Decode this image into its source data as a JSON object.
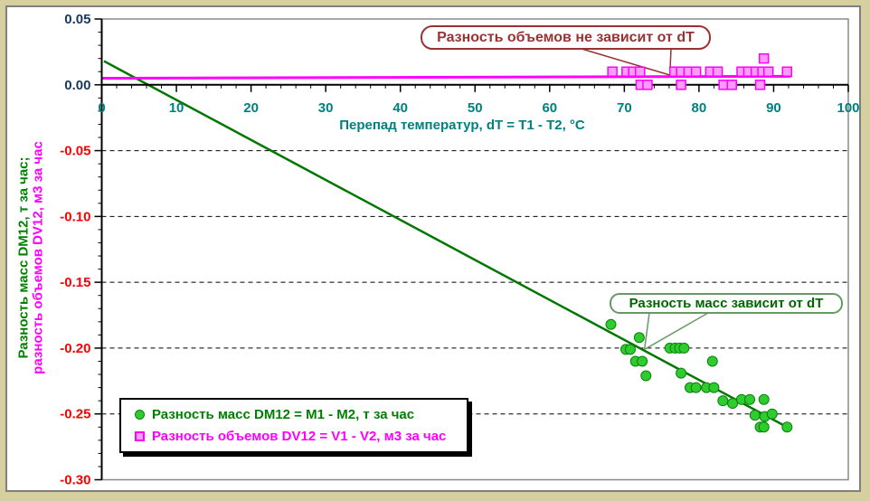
{
  "colors": {
    "frame_background": "#d6d0a0",
    "chart_background": "#ffffff",
    "chart_border": "#7f7f7f",
    "axis": "#000000",
    "x_tick_label": "#008080",
    "y_tick_label_positive": "#17375d",
    "y_tick_label_negative": "#ff0000",
    "mass_marker_fill": "#2ecc2e",
    "mass_marker_edge": "#0a800a",
    "mass_trendline": "#007700",
    "volume_marker_fill": "#ff9aff",
    "volume_marker_edge": "#ff00ff",
    "volume_trendline": "#ff00ff",
    "annotation_volumes": "#993333",
    "annotation_masses_text": "#006600",
    "annotation_masses_border": "#669966"
  },
  "legend": {
    "items": [
      {
        "label": "Разность масс DM12 = M1 - M2, т за час",
        "marker": "green-circle",
        "color": "#008000"
      },
      {
        "label": "Разность объемов DV12 = V1 - V2, м3 за час",
        "marker": "pink-square",
        "color": "#ff00ff"
      }
    ]
  },
  "chart_data": {
    "type": "scatter",
    "xlabel": "Перепад температур, dT = T1 - T2, °C",
    "ylabel_line1": "Разность масс DM12, т за час;",
    "ylabel_line2": "разность объемов DV12, м3 за час",
    "xlim": [
      0,
      100
    ],
    "ylim": [
      -0.3,
      0.05
    ],
    "x_minor_step": 2,
    "y_minor_step": 0.01,
    "grid": "horizontal-dashed",
    "gridlines": [
      -0.05,
      -0.1,
      -0.15,
      -0.2,
      -0.25
    ],
    "x_ticks": [
      {
        "value": 0,
        "label": "0"
      },
      {
        "value": 10,
        "label": "10"
      },
      {
        "value": 20,
        "label": "20"
      },
      {
        "value": 30,
        "label": "30"
      },
      {
        "value": 40,
        "label": "40"
      },
      {
        "value": 50,
        "label": "50"
      },
      {
        "value": 60,
        "label": "60"
      },
      {
        "value": 70,
        "label": "70"
      },
      {
        "value": 80,
        "label": "80"
      },
      {
        "value": 90,
        "label": "90"
      },
      {
        "value": 100,
        "label": "100"
      }
    ],
    "y_ticks": [
      {
        "value": 0.05,
        "label": "0.05",
        "color": "#17375d"
      },
      {
        "value": 0.0,
        "label": "0.00",
        "color": "#17375d"
      },
      {
        "value": -0.05,
        "label": "-0.05",
        "color": "#ff0000"
      },
      {
        "value": -0.1,
        "label": "-0.10",
        "color": "#ff0000"
      },
      {
        "value": -0.15,
        "label": "-0.15",
        "color": "#ff0000"
      },
      {
        "value": -0.2,
        "label": "-0.20",
        "color": "#ff0000"
      },
      {
        "value": -0.25,
        "label": "-0.25",
        "color": "#ff0000"
      },
      {
        "value": -0.3,
        "label": "-0.30",
        "color": "#ff0000"
      }
    ],
    "series": [
      {
        "name": "Разность масс DM12 = M1 - M2, т за час",
        "marker": "circle",
        "fill": "#2ecc2e",
        "edge": "#0a800a",
        "points": [
          [
            68.2,
            -0.182
          ],
          [
            70.2,
            -0.201
          ],
          [
            70.8,
            -0.201
          ],
          [
            71.5,
            -0.21
          ],
          [
            72.0,
            -0.192
          ],
          [
            72.4,
            -0.21
          ],
          [
            72.9,
            -0.221
          ],
          [
            76.1,
            -0.2
          ],
          [
            76.8,
            -0.2
          ],
          [
            77.4,
            -0.2
          ],
          [
            78.0,
            -0.2
          ],
          [
            77.6,
            -0.219
          ],
          [
            78.8,
            -0.23
          ],
          [
            79.6,
            -0.23
          ],
          [
            81.0,
            -0.23
          ],
          [
            81.8,
            -0.21
          ],
          [
            82.0,
            -0.23
          ],
          [
            83.2,
            -0.24
          ],
          [
            84.5,
            -0.242
          ],
          [
            85.7,
            -0.239
          ],
          [
            86.8,
            -0.239
          ],
          [
            88.7,
            -0.239
          ],
          [
            87.5,
            -0.251
          ],
          [
            88.8,
            -0.252
          ],
          [
            89.8,
            -0.25
          ],
          [
            88.2,
            -0.26
          ],
          [
            88.7,
            -0.26
          ],
          [
            91.8,
            -0.26
          ]
        ]
      },
      {
        "name": "Разность объемов DV12 = V1 - V2, м3 за час",
        "marker": "square",
        "fill": "#ff9aff",
        "edge": "#ff00ff",
        "points": [
          [
            68.4,
            0.01
          ],
          [
            70.3,
            0.01
          ],
          [
            71.2,
            0.01
          ],
          [
            72.1,
            0.01
          ],
          [
            76.7,
            0.01
          ],
          [
            77.6,
            0.01
          ],
          [
            78.6,
            0.01
          ],
          [
            79.6,
            0.01
          ],
          [
            81.5,
            0.01
          ],
          [
            82.5,
            0.01
          ],
          [
            85.7,
            0.01
          ],
          [
            86.6,
            0.01
          ],
          [
            87.6,
            0.01
          ],
          [
            88.5,
            0.01
          ],
          [
            89.3,
            0.01
          ],
          [
            91.8,
            0.01
          ],
          [
            72.2,
            0.0
          ],
          [
            73.1,
            0.0
          ],
          [
            77.6,
            0.0
          ],
          [
            83.3,
            0.0
          ],
          [
            84.4,
            0.0
          ],
          [
            88.2,
            0.0
          ],
          [
            88.7,
            0.02
          ]
        ]
      }
    ],
    "trendlines": [
      {
        "name": "mass-trendline",
        "color": "#007700",
        "width": 2.5,
        "from": [
          0.3,
          0.018
        ],
        "to": [
          91.8,
          -0.26
        ]
      },
      {
        "name": "volume-trendline",
        "color": "#ff00ff",
        "width": 3,
        "from": [
          0,
          0.005
        ],
        "to": [
          92.3,
          0.0065
        ]
      }
    ],
    "annotations": [
      {
        "text": "Разность объемов не зависит от dT",
        "target": [
          76.1,
          0.0074
        ],
        "text_color": "#993333",
        "border_color": "#993333"
      },
      {
        "text": "Разность масс зависит от dT",
        "target": [
          72.7,
          -0.201
        ],
        "text_color": "#006600",
        "border_color": "#669966"
      }
    ]
  }
}
